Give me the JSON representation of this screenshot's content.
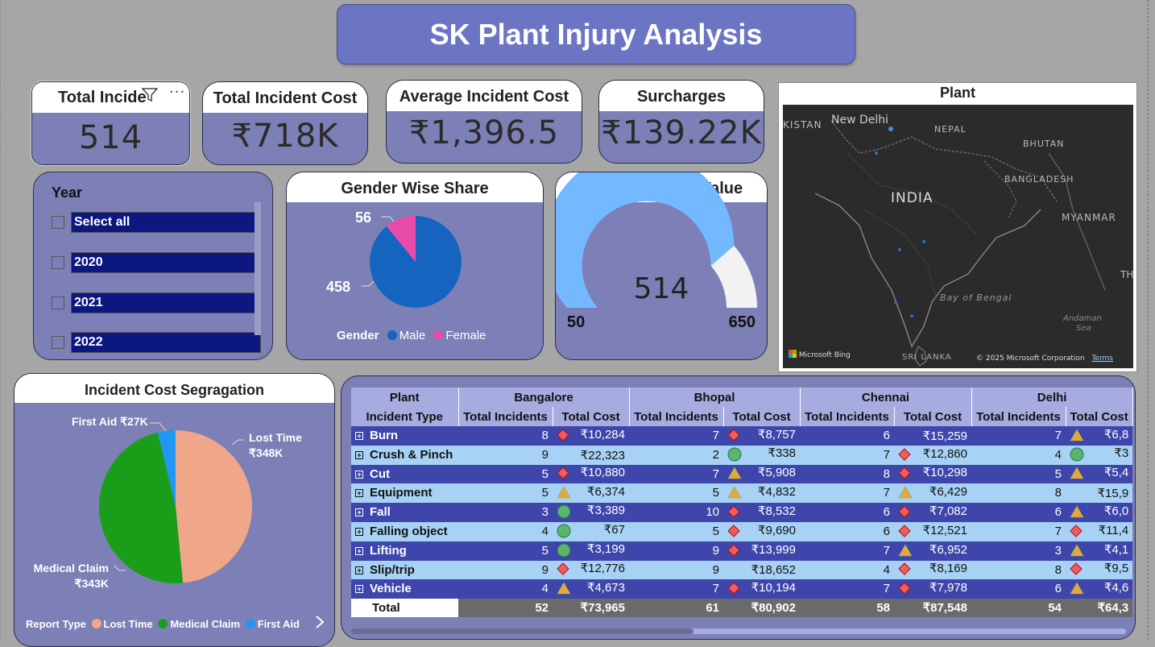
{
  "title": "SK Plant Injury Analysis",
  "kpis": [
    {
      "label": "Total Incide",
      "value": "514"
    },
    {
      "label": "Total Incident Cost",
      "value": "₹718K"
    },
    {
      "label": "Average Incident Cost",
      "value": "₹1,396.5"
    },
    {
      "label": "Surcharges",
      "value": "₹139.22K"
    }
  ],
  "year_slicer": {
    "title": "Year",
    "options": [
      "Select all",
      "2020",
      "2021",
      "2022"
    ]
  },
  "gender_chart": {
    "title": "Gender Wise Share",
    "legend_title": "Gender",
    "male_label": "Male",
    "female_label": "Female",
    "male_value": "458",
    "female_value": "56",
    "colors": {
      "male": "#1565c0",
      "female": "#e84ba8"
    }
  },
  "gauge": {
    "title": "Incident Gauge Value",
    "value": "514",
    "min": "50",
    "max": "650",
    "colors": {
      "fill": "#74b9ff",
      "rest": "#f2f2f2"
    }
  },
  "map": {
    "title": "Plant",
    "labels": [
      "KISTAN",
      "New Delhi",
      "NEPAL",
      "BHUTAN",
      "BANGLADESH",
      "INDIA",
      "MYANMAR",
      "TH",
      "Bay of Bengal",
      "Andaman",
      "Sea",
      "SRI LANKA"
    ],
    "attribution": "Microsoft Bing",
    "copyright": "© 2025 Microsoft Corporation",
    "terms": "Terms"
  },
  "cost_chart": {
    "title": "Incident Cost Segragation",
    "legend_title": "Report Type",
    "slices": [
      {
        "name": "Lost Time",
        "label": "₹348K",
        "value": 348,
        "color": "#f0a688"
      },
      {
        "name": "Medical Claim",
        "label": "₹343K",
        "value": 343,
        "color": "#1a9e1a"
      },
      {
        "name": "First Aid",
        "label": "₹27K",
        "value": 27,
        "color": "#2196f3"
      }
    ],
    "first_aid_callout": "First Aid ₹27K",
    "lost_time_callout": "Lost Time",
    "medical_callout": "Medical Claim"
  },
  "chart_data": [
    {
      "type": "pie",
      "title": "Gender Wise Share",
      "categories": [
        "Male",
        "Female"
      ],
      "values": [
        458,
        56
      ],
      "legend": "bottom"
    },
    {
      "type": "pie",
      "title": "Incident Cost Segragation",
      "categories": [
        "Lost Time",
        "Medical Claim",
        "First Aid"
      ],
      "values": [
        348,
        343,
        27
      ],
      "legend": "bottom"
    }
  ],
  "matrix": {
    "plant_header": "Plant",
    "type_header": "Incident Type",
    "plants": [
      "Bangalore",
      "Bhopal",
      "Chennai",
      "Delhi"
    ],
    "col_incidents": "Total Incidents",
    "col_cost": "Total Cost",
    "rows": [
      {
        "type": "Burn",
        "cells": [
          [
            "8",
            "diamond",
            "₹10,284"
          ],
          [
            "7",
            "diamond",
            "₹8,757"
          ],
          [
            "6",
            "",
            "₹15,259"
          ],
          [
            "7",
            "triangle",
            "₹6,8"
          ]
        ]
      },
      {
        "type": "Crush & Pinch",
        "cells": [
          [
            "9",
            "",
            "₹22,323"
          ],
          [
            "2",
            "circle",
            "₹338"
          ],
          [
            "7",
            "diamond",
            "₹12,860"
          ],
          [
            "4",
            "circle",
            "₹3"
          ]
        ]
      },
      {
        "type": "Cut",
        "cells": [
          [
            "5",
            "diamond",
            "₹10,880"
          ],
          [
            "7",
            "triangle",
            "₹5,908"
          ],
          [
            "8",
            "diamond",
            "₹10,298"
          ],
          [
            "5",
            "triangle",
            "₹5,4"
          ]
        ]
      },
      {
        "type": "Equipment",
        "cells": [
          [
            "5",
            "triangle",
            "₹6,374"
          ],
          [
            "5",
            "triangle",
            "₹4,832"
          ],
          [
            "7",
            "triangle",
            "₹6,429"
          ],
          [
            "8",
            "",
            "₹15,9"
          ]
        ]
      },
      {
        "type": "Fall",
        "cells": [
          [
            "3",
            "circle",
            "₹3,389"
          ],
          [
            "10",
            "diamond",
            "₹8,532"
          ],
          [
            "6",
            "diamond",
            "₹7,082"
          ],
          [
            "6",
            "triangle",
            "₹6,0"
          ]
        ]
      },
      {
        "type": "Falling object",
        "cells": [
          [
            "4",
            "circle",
            "₹67"
          ],
          [
            "5",
            "diamond",
            "₹9,690"
          ],
          [
            "6",
            "diamond",
            "₹12,521"
          ],
          [
            "7",
            "diamond",
            "₹11,4"
          ]
        ]
      },
      {
        "type": "Lifting",
        "cells": [
          [
            "5",
            "circle",
            "₹3,199"
          ],
          [
            "9",
            "diamond",
            "₹13,999"
          ],
          [
            "7",
            "triangle",
            "₹6,952"
          ],
          [
            "3",
            "triangle",
            "₹4,1"
          ]
        ]
      },
      {
        "type": "Slip/trip",
        "cells": [
          [
            "9",
            "diamond",
            "₹12,776"
          ],
          [
            "9",
            "",
            "₹18,652"
          ],
          [
            "4",
            "diamond",
            "₹8,169"
          ],
          [
            "8",
            "diamond",
            "₹9,5"
          ]
        ]
      },
      {
        "type": "Vehicle",
        "cells": [
          [
            "4",
            "triangle",
            "₹4,673"
          ],
          [
            "7",
            "diamond",
            "₹10,194"
          ],
          [
            "7",
            "diamond",
            "₹7,978"
          ],
          [
            "6",
            "triangle",
            "₹4,6"
          ]
        ]
      }
    ],
    "total_label": "Total",
    "totals": [
      [
        "52",
        "₹73,965"
      ],
      [
        "61",
        "₹80,902"
      ],
      [
        "58",
        "₹87,548"
      ],
      [
        "54",
        "₹64,3"
      ]
    ]
  }
}
